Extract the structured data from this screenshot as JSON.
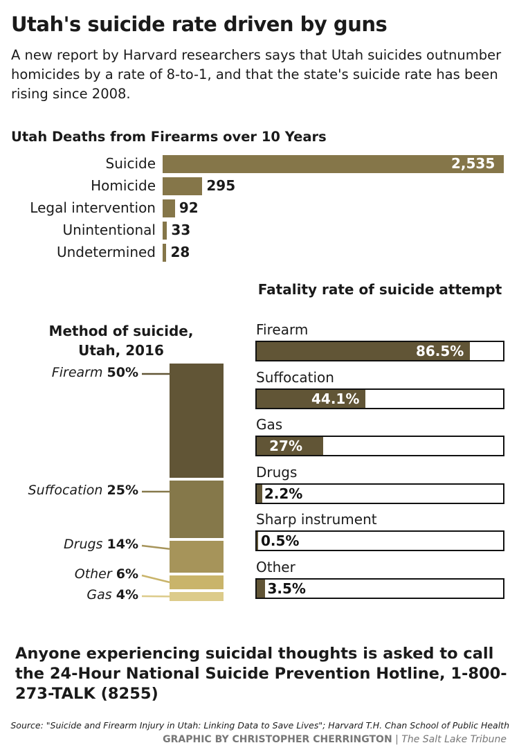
{
  "title": "Utah's suicide rate driven by guns",
  "subtitle": "A new report by Harvard researchers says that Utah suicides outnumber homicides by a rate of 8-to-1, and that the state's suicide rate has been rising since 2008.",
  "chart_data": [
    {
      "type": "bar",
      "title": "Utah Deaths from Firearms over 10 Years",
      "categories": [
        "Suicide",
        "Homicide",
        "Legal intervention",
        "Unintentional",
        "Undetermined"
      ],
      "values": [
        2535,
        295,
        92,
        33,
        28
      ],
      "value_labels": [
        "2,535",
        "295",
        "92",
        "33",
        "28"
      ],
      "color": "#857649"
    },
    {
      "type": "bar",
      "stacked": true,
      "title": "Method of suicide, Utah, 2016",
      "categories": [
        "Firearm",
        "Suffocation",
        "Drugs",
        "Other",
        "Gas"
      ],
      "values": [
        50,
        25,
        14,
        6,
        4
      ],
      "value_labels": [
        "50%",
        "25%",
        "14%",
        "6%",
        "4%"
      ],
      "colors": [
        "#615536",
        "#85784a",
        "#a6945a",
        "#c9b46a",
        "#dccb8a"
      ]
    },
    {
      "type": "bar",
      "title": "Fatality rate of suicide attempt",
      "categories": [
        "Firearm",
        "Suffocation",
        "Gas",
        "Drugs",
        "Sharp instrument",
        "Other"
      ],
      "values": [
        86.5,
        44.1,
        27,
        2.2,
        0.5,
        3.5
      ],
      "value_labels": [
        "86.5%",
        "44.1%",
        "27%",
        "2.2%",
        "0.5%",
        "3.5%"
      ],
      "xlim": [
        0,
        100
      ],
      "color": "#615536"
    }
  ],
  "hotline": "Anyone experiencing suicidal thoughts is asked to call the 24-Hour National Suicide Prevention Hotline, 1-800-273-TALK (8255)",
  "source": "Source: \"Suicide and Firearm Injury in Utah: Linking Data to Save Lives\"; Harvard T.H. Chan School of Public Health",
  "credit": {
    "graphic_by": "GRAPHIC BY CHRISTOPHER CHERRINGTON",
    "separator": "|",
    "publication": "The Salt Lake Tribune"
  }
}
